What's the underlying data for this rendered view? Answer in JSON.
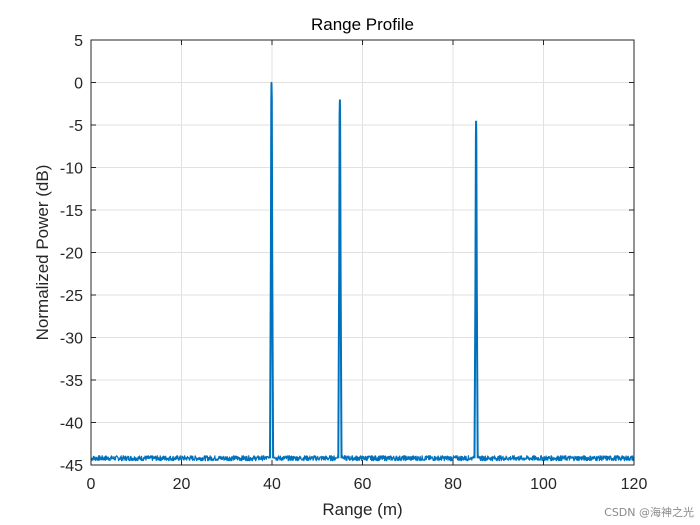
{
  "chart_data": {
    "type": "line",
    "title": "Range Profile",
    "xlabel": "Range (m)",
    "ylabel": "Normalized Power (dB)",
    "xlim": [
      0,
      120
    ],
    "ylim": [
      -45,
      5
    ],
    "xticks": [
      "0",
      "20",
      "40",
      "60",
      "80",
      "100",
      "120"
    ],
    "yticks": [
      "5",
      "0",
      "-5",
      "-10",
      "-15",
      "-20",
      "-25",
      "-30",
      "-35",
      "-40",
      "-45"
    ],
    "grid": true,
    "line_color": "#0072BD",
    "noise_floor": -44.2,
    "peaks": [
      {
        "x": 39.9,
        "y": 0
      },
      {
        "x": 55.0,
        "y": -2
      },
      {
        "x": 85.1,
        "y": -4.5
      }
    ],
    "series": [
      {
        "x": [
          0,
          5,
          10,
          15,
          20,
          25,
          30,
          35,
          38,
          39,
          39.5,
          39.8,
          39.9,
          40.0,
          40.2,
          40.5,
          41,
          43,
          48,
          53,
          54,
          54.5,
          54.8,
          55.0,
          55.2,
          55.5,
          56,
          58,
          63,
          68,
          73,
          78,
          83,
          84,
          84.5,
          84.8,
          85.1,
          85.3,
          85.6,
          86,
          88,
          93,
          98,
          103,
          108,
          113,
          118,
          120
        ],
        "y": [
          -44.1,
          -44.3,
          -44.2,
          -44.4,
          -44.1,
          -44.3,
          -44.2,
          -44.3,
          -44.1,
          -43.0,
          -27.0,
          -5.0,
          0.0,
          -4.0,
          -30.0,
          -42.0,
          -44.2,
          -44.3,
          -44.2,
          -44.1,
          -44.0,
          -30.0,
          -8.0,
          -2.0,
          -6.0,
          -28.0,
          -43.8,
          -44.2,
          -44.3,
          -44.1,
          -44.2,
          -44.3,
          -44.2,
          -43.5,
          -32.0,
          -12.0,
          -4.5,
          -8.0,
          -33.0,
          -44.0,
          -44.2,
          -44.3,
          -44.1,
          -44.3,
          -44.2,
          -44.4,
          -44.2,
          -44.1
        ]
      }
    ]
  },
  "watermark": "CSDN @海神之光"
}
